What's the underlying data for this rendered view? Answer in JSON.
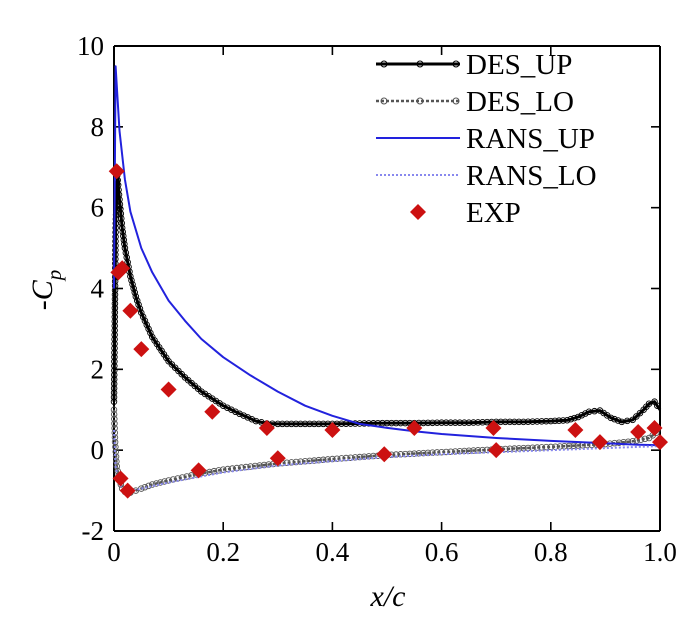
{
  "chart_data": {
    "type": "line",
    "title": "",
    "xlabel": "x/c",
    "ylabel": "-C_p",
    "ylabel_main": "-C",
    "ylabel_sub": "p",
    "xlim": [
      0,
      1.0
    ],
    "ylim": [
      -2,
      10
    ],
    "x_ticks": [
      0,
      0.2,
      0.4,
      0.6,
      0.8,
      1.0
    ],
    "x_tick_labels": [
      "0",
      "0.2",
      "0.4",
      "0.6",
      "0.8",
      "1.0"
    ],
    "y_ticks": [
      -2,
      0,
      2,
      4,
      6,
      8,
      10
    ],
    "y_tick_labels": [
      "-2",
      "0",
      "2",
      "4",
      "6",
      "8",
      "10"
    ],
    "grid": false,
    "legend_position": "top-right",
    "series": [
      {
        "name": "DES_UP",
        "color": "#000000",
        "style": "solid-circles",
        "x": [
          0,
          0.003,
          0.006,
          0.01,
          0.015,
          0.02,
          0.03,
          0.04,
          0.05,
          0.07,
          0.1,
          0.13,
          0.16,
          0.2,
          0.23,
          0.26,
          0.28,
          0.3,
          0.35,
          0.4,
          0.45,
          0.5,
          0.55,
          0.6,
          0.65,
          0.7,
          0.75,
          0.8,
          0.83,
          0.85,
          0.87,
          0.89,
          0.91,
          0.93,
          0.95,
          0.97,
          0.98,
          0.99,
          1.0
        ],
        "y": [
          1.2,
          5.5,
          6.8,
          6.2,
          5.5,
          5.0,
          4.3,
          3.8,
          3.4,
          2.8,
          2.2,
          1.8,
          1.45,
          1.1,
          0.9,
          0.72,
          0.66,
          0.65,
          0.65,
          0.65,
          0.66,
          0.67,
          0.67,
          0.68,
          0.68,
          0.7,
          0.7,
          0.72,
          0.74,
          0.82,
          0.95,
          0.98,
          0.8,
          0.7,
          0.75,
          1.0,
          1.15,
          1.2,
          1.0
        ]
      },
      {
        "name": "DES_LO",
        "color": "#555555",
        "style": "dotted-circles",
        "x": [
          0,
          0.002,
          0.005,
          0.01,
          0.015,
          0.02,
          0.025,
          0.03,
          0.04,
          0.05,
          0.07,
          0.1,
          0.15,
          0.2,
          0.3,
          0.4,
          0.5,
          0.6,
          0.7,
          0.8,
          0.9,
          0.95,
          0.98,
          1.0
        ],
        "y": [
          1.0,
          0.2,
          -0.4,
          -0.75,
          -0.95,
          -1.03,
          -1.05,
          -1.05,
          -1.0,
          -0.95,
          -0.85,
          -0.75,
          -0.6,
          -0.48,
          -0.33,
          -0.22,
          -0.12,
          -0.05,
          0.02,
          0.08,
          0.15,
          0.22,
          0.3,
          0.5
        ]
      },
      {
        "name": "RANS_UP",
        "color": "#2222dd",
        "style": "solid",
        "x": [
          0,
          0.003,
          0.006,
          0.01,
          0.02,
          0.03,
          0.05,
          0.07,
          0.1,
          0.13,
          0.16,
          0.2,
          0.25,
          0.3,
          0.35,
          0.4,
          0.45,
          0.5,
          0.55,
          0.6,
          0.65,
          0.7,
          0.8,
          0.9,
          0.95,
          1.0
        ],
        "y": [
          4.0,
          9.5,
          8.8,
          7.9,
          6.7,
          5.9,
          5.0,
          4.4,
          3.7,
          3.2,
          2.75,
          2.3,
          1.85,
          1.45,
          1.1,
          0.85,
          0.65,
          0.55,
          0.47,
          0.4,
          0.35,
          0.3,
          0.23,
          0.17,
          0.14,
          0.12
        ]
      },
      {
        "name": "RANS_LO",
        "color": "#8888ee",
        "style": "dotted",
        "x": [
          0,
          0.003,
          0.01,
          0.02,
          0.03,
          0.05,
          0.1,
          0.2,
          0.3,
          0.4,
          0.5,
          0.6,
          0.7,
          0.8,
          0.9,
          1.0
        ],
        "y": [
          0.5,
          -0.4,
          -0.85,
          -1.0,
          -1.02,
          -0.95,
          -0.8,
          -0.55,
          -0.38,
          -0.27,
          -0.17,
          -0.1,
          -0.05,
          0.0,
          0.05,
          0.1
        ]
      }
    ],
    "points": {
      "name": "EXP",
      "color": "#cc1111",
      "x": [
        0.005,
        0.008,
        0.012,
        0.015,
        0.025,
        0.03,
        0.05,
        0.1,
        0.155,
        0.18,
        0.28,
        0.3,
        0.4,
        0.495,
        0.55,
        0.695,
        0.7,
        0.845,
        0.89,
        0.96,
        0.99,
        1.0
      ],
      "y": [
        6.9,
        4.4,
        -0.7,
        4.5,
        -1.0,
        3.45,
        2.5,
        1.5,
        -0.5,
        0.95,
        0.55,
        -0.2,
        0.5,
        -0.1,
        0.55,
        0.55,
        0.0,
        0.5,
        0.2,
        0.45,
        0.55,
        0.2
      ]
    }
  }
}
